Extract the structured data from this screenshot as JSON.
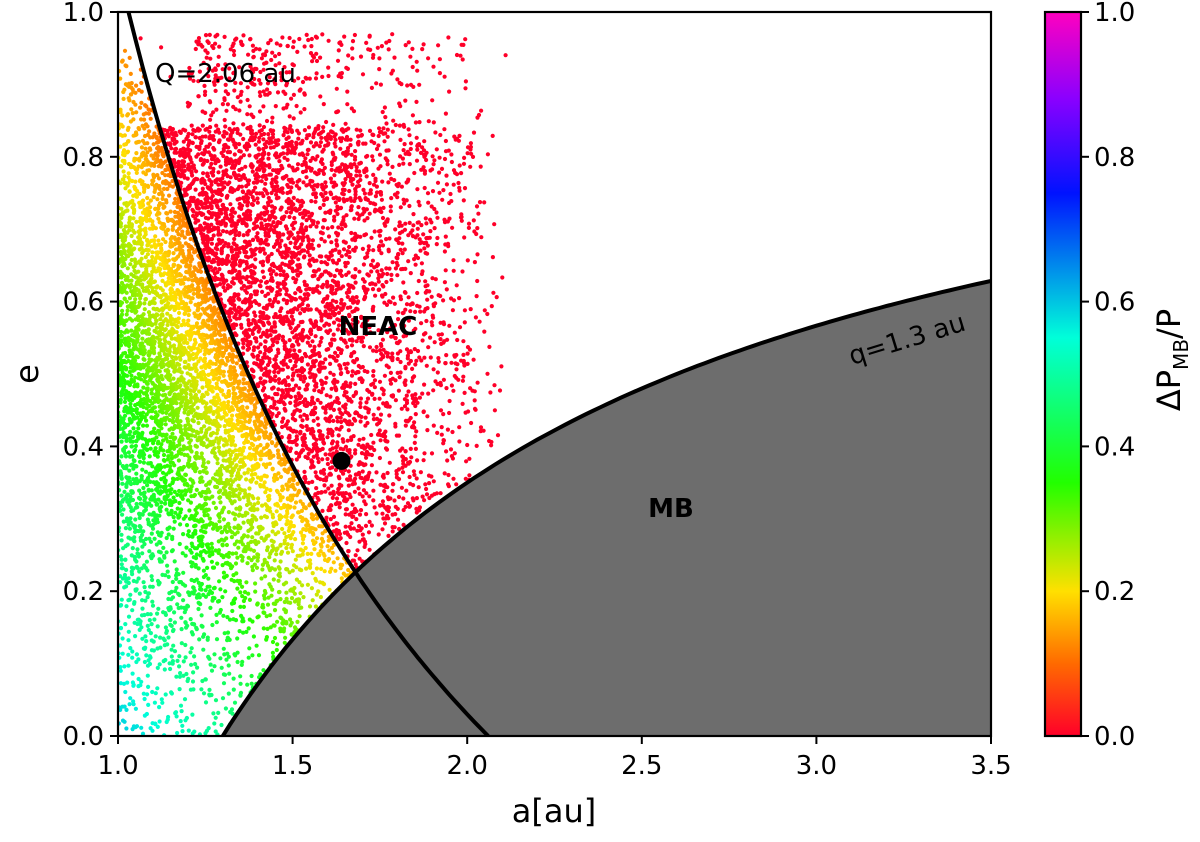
{
  "chart_data": {
    "type": "scatter",
    "xlabel": "a[au]",
    "ylabel": "e",
    "xlim": [
      1.0,
      3.5
    ],
    "ylim": [
      0.0,
      1.0
    ],
    "xticks": [
      "1.0",
      "1.5",
      "2.0",
      "2.5",
      "3.0",
      "3.5"
    ],
    "yticks": [
      "0.0",
      "0.2",
      "0.4",
      "0.6",
      "0.8",
      "1.0"
    ],
    "grid": false,
    "colorbar": {
      "label_main": "ΔP",
      "label_sub": "MB",
      "label_tail": "/P",
      "range": [
        0.0,
        1.0
      ],
      "ticks": [
        "0.0",
        "0.2",
        "0.4",
        "0.6",
        "0.8",
        "1.0"
      ],
      "colormap": "gist_rainbow"
    },
    "curves": [
      {
        "name": "Q=2.06 au",
        "kind": "aphelion",
        "Q": 2.06,
        "label_at": [
          1.1,
          0.9
        ]
      },
      {
        "name": "q=1.3 au",
        "kind": "perihelion",
        "q": 1.3,
        "label_at": [
          2.95,
          0.55
        ]
      }
    ],
    "regions": [
      {
        "name": "NEAC",
        "label_at": [
          1.6,
          0.56
        ]
      },
      {
        "name": "MB",
        "label_at": [
          2.5,
          0.3
        ]
      }
    ],
    "highlight_point": {
      "a": 1.64,
      "e": 0.38
    },
    "scatter_description_values": {
      "color_rule": "ΔP_MB/P = 0 where a(1+e) > 2.06; otherwise increases with distance from Q curve",
      "point_count_approx": 9000
    }
  }
}
